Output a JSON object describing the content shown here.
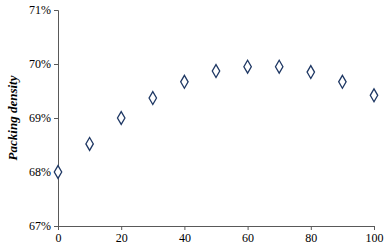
{
  "chart_data": {
    "type": "scatter",
    "ylabel": "Packing density",
    "x": [
      0,
      10,
      20,
      30,
      40,
      50,
      60,
      70,
      80,
      90,
      100
    ],
    "values": [
      68.0,
      68.52,
      69.0,
      69.37,
      69.67,
      69.87,
      69.95,
      69.95,
      69.85,
      69.67,
      69.42
    ],
    "color": "#1f3864",
    "marker": "diamond",
    "xlim": [
      0,
      100
    ],
    "xticks": [
      0,
      20,
      40,
      60,
      80,
      100
    ],
    "ylim": [
      67,
      71
    ],
    "yticks": [
      {
        "value": 67,
        "label": "67%"
      },
      {
        "value": 68,
        "label": "68%"
      },
      {
        "value": 69,
        "label": "69%"
      },
      {
        "value": 70,
        "label": "70%"
      },
      {
        "value": 71,
        "label": "71%"
      }
    ],
    "grid": false
  }
}
